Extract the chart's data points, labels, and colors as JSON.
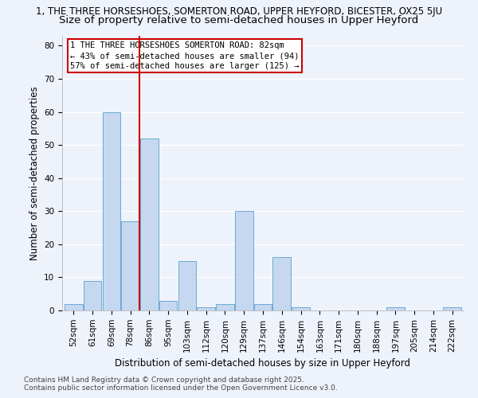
{
  "title_line1": "1, THE THREE HORSESHOES, SOMERTON ROAD, UPPER HEYFORD, BICESTER, OX25 5JU",
  "title_line2": "Size of property relative to semi-detached houses in Upper Heyford",
  "xlabel": "Distribution of semi-detached houses by size in Upper Heyford",
  "ylabel": "Number of semi-detached properties",
  "footnote": "Contains HM Land Registry data © Crown copyright and database right 2025.\nContains public sector information licensed under the Open Government Licence v3.0.",
  "bins": [
    52,
    61,
    69,
    78,
    86,
    95,
    103,
    112,
    120,
    129,
    137,
    146,
    154,
    163,
    171,
    180,
    188,
    197,
    205,
    214,
    222
  ],
  "counts": [
    2,
    9,
    60,
    27,
    52,
    3,
    15,
    1,
    2,
    30,
    2,
    16,
    1,
    0,
    0,
    0,
    0,
    1,
    0,
    0,
    1
  ],
  "bar_color": "#c5d8f0",
  "bar_edge_color": "#6aaad4",
  "property_size": 82,
  "property_line_color": "#cc0000",
  "annotation_text": "1 THE THREE HORSESHOES SOMERTON ROAD: 82sqm\n← 43% of semi-detached houses are smaller (94)\n57% of semi-detached houses are larger (125) →",
  "annotation_box_color": "#ffffff",
  "annotation_box_edge": "#cc0000",
  "ylim": [
    0,
    83
  ],
  "yticks": [
    0,
    10,
    20,
    30,
    40,
    50,
    60,
    70,
    80
  ],
  "background_color": "#eef2fb",
  "grid_color": "#ffffff",
  "title_fontsize": 8.5,
  "subtitle_fontsize": 9.5,
  "axis_label_fontsize": 8.5,
  "tick_fontsize": 7.5,
  "footnote_fontsize": 6.5
}
